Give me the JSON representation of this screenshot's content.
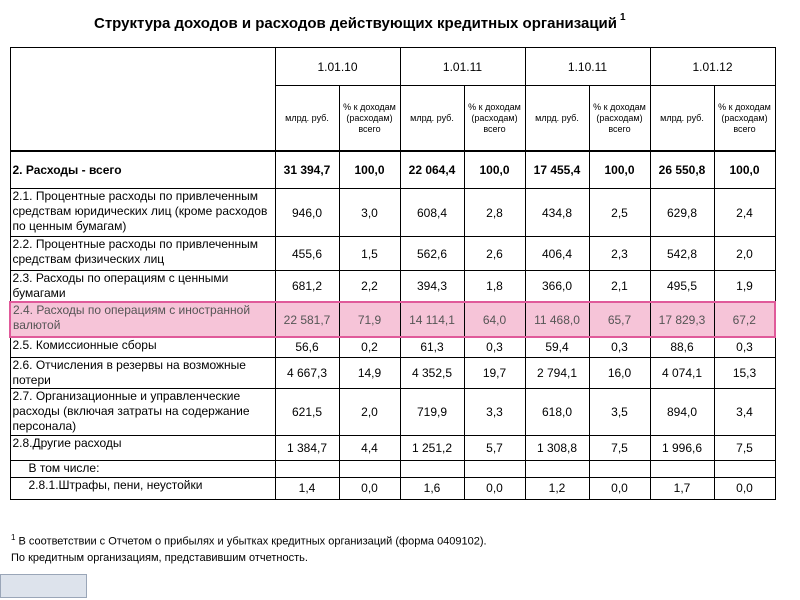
{
  "title": "Структура доходов и расходов действующих кредитных организаций",
  "title_sup": "1",
  "dates": [
    "1.01.10",
    "1.01.11",
    "1.10.11",
    "1.01.12"
  ],
  "unit_mln": "млрд. руб.",
  "unit_pct": "% к доходам (расходам) всего",
  "rows": [
    {
      "label": "2. Расходы - всего",
      "values": [
        "31 394,7",
        "100,0",
        "22 064,4",
        "100,0",
        "17 455,4",
        "100,0",
        "26 550,8",
        "100,0"
      ]
    },
    {
      "label": "2.1. Процентные расходы по привлеченным средствам юридических лиц (кроме расходов по ценным бумагам)",
      "values": [
        "946,0",
        "3,0",
        "608,4",
        "2,8",
        "434,8",
        "2,5",
        "629,8",
        "2,4"
      ]
    },
    {
      "label": "2.2. Процентные расходы по привлеченным средствам физических лиц",
      "values": [
        "455,6",
        "1,5",
        "562,6",
        "2,6",
        "406,4",
        "2,3",
        "542,8",
        "2,0"
      ]
    },
    {
      "label": "2.3. Расходы по операциям с ценными бумагами",
      "values": [
        "681,2",
        "2,2",
        "394,3",
        "1,8",
        "366,0",
        "2,1",
        "495,5",
        "1,9"
      ]
    },
    {
      "label": "2.4. Расходы по операциям с иностранной валютой",
      "values": [
        "22 581,7",
        "71,9",
        "14 114,1",
        "64,0",
        "11 468,0",
        "65,7",
        "17 829,3",
        "67,2"
      ]
    },
    {
      "label": "2.5. Комиссионные сборы",
      "values": [
        "56,6",
        "0,2",
        "61,3",
        "0,3",
        "59,4",
        "0,3",
        "88,6",
        "0,3"
      ]
    },
    {
      "label": "2.6. Отчисления в резервы на возможные потери",
      "values": [
        "4 667,3",
        "14,9",
        "4 352,5",
        "19,7",
        "2 794,1",
        "16,0",
        "4 074,1",
        "15,3"
      ]
    },
    {
      "label": "2.7. Организационные и управленческие расходы (включая затраты на содержание персонала)",
      "values": [
        "621,5",
        "2,0",
        "719,9",
        "3,3",
        "618,0",
        "3,5",
        "894,0",
        "3,4"
      ]
    },
    {
      "label": "2.8.Другие расходы",
      "values": [
        "1 384,7",
        "4,4",
        "1 251,2",
        "5,7",
        "1 308,8",
        "7,5",
        "1 996,6",
        "7,5"
      ]
    },
    {
      "label": "В том числе:",
      "values": [
        "",
        "",
        "",
        "",
        "",
        "",
        "",
        ""
      ]
    },
    {
      "label": "2.8.1.Штрафы, пени, неустойки",
      "values": [
        "1,4",
        "0,0",
        "1,6",
        "0,0",
        "1,2",
        "0,0",
        "1,7",
        "0,0"
      ]
    }
  ],
  "footnote1_sup": "1",
  "footnote1": "В соответствии с Отчетом о прибылях и убытках кредитных организаций (форма 0409102).",
  "footnote2": "По кредитным организациям, представившим отчетность."
}
